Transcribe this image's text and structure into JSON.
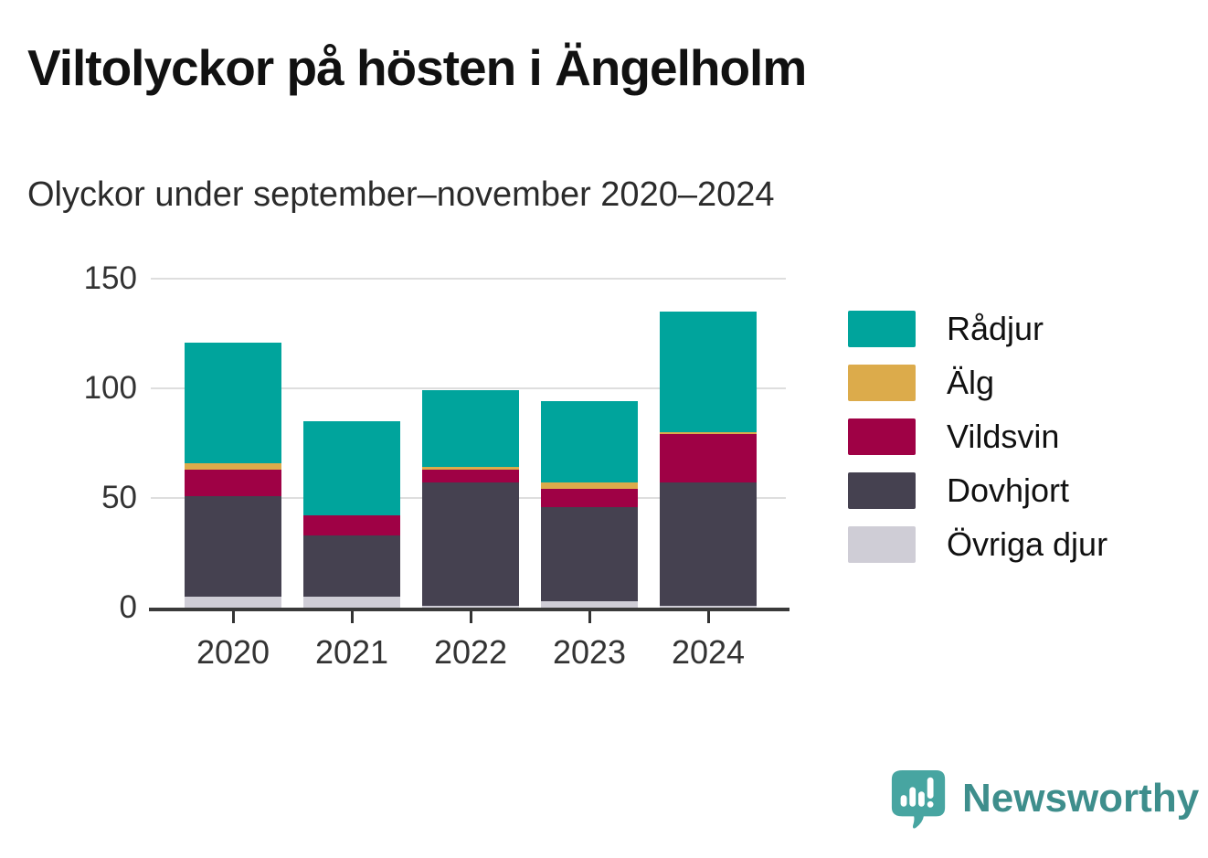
{
  "chart_data": {
    "type": "bar",
    "stacked": true,
    "title": "Viltolyckor på hösten i Ängelholm",
    "subtitle": "Olyckor under september–november 2020–2024",
    "categories": [
      "2020",
      "2021",
      "2022",
      "2023",
      "2024"
    ],
    "series": [
      {
        "name": "Övriga djur",
        "color": "#cfcdd6",
        "values": [
          5,
          5,
          1,
          3,
          1
        ]
      },
      {
        "name": "Dovhjort",
        "color": "#454150",
        "values": [
          46,
          28,
          56,
          43,
          56
        ]
      },
      {
        "name": "Vildsvin",
        "color": "#9f0145",
        "values": [
          12,
          9,
          6,
          8,
          22
        ]
      },
      {
        "name": "Älg",
        "color": "#dcab4b",
        "values": [
          3,
          0,
          1,
          3,
          1
        ]
      },
      {
        "name": "Rådjur",
        "color": "#00a49c",
        "values": [
          55,
          43,
          35,
          37,
          55
        ]
      }
    ],
    "ylim": [
      0,
      150
    ],
    "yticks": [
      0,
      50,
      100,
      150
    ],
    "grid": true,
    "legend_position": "right",
    "legend_order": [
      "Rådjur",
      "Älg",
      "Vildsvin",
      "Dovhjort",
      "Övriga djur"
    ]
  },
  "axis_style": {
    "text_color": "#333333",
    "grid_color": "#dedede",
    "baseline_color": "#3a3a3a"
  },
  "branding": {
    "logo_text": "Newsworthy",
    "logo_icon": "speech-bubble-bar-chart-icon",
    "text_color": "#3e8e8c",
    "icon_color": "#47a5a1"
  }
}
